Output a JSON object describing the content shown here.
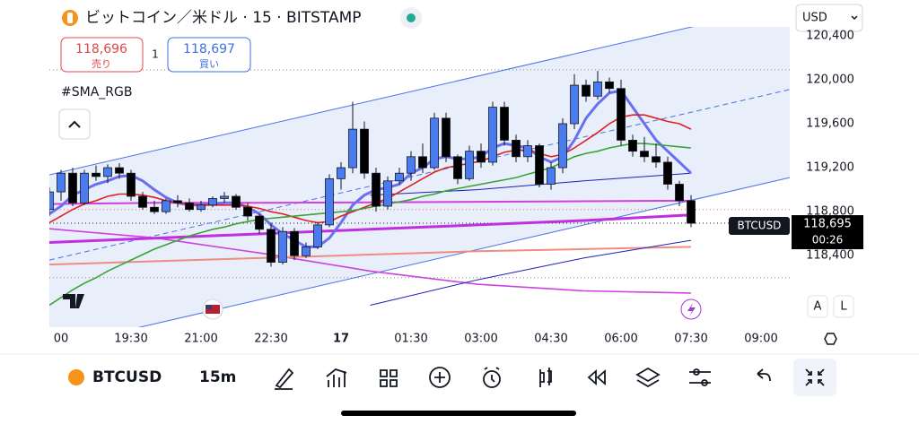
{
  "header": {
    "title": "ビットコイン／米ドル · 15 · BITSTAMP",
    "sell_price": "118,696",
    "sell_label": "売り",
    "quantity": "1",
    "buy_price": "118,697",
    "buy_label": "買い",
    "indicator": "#SMA_RGB",
    "currency": "USD"
  },
  "price_tag": {
    "symbol": "BTCUSD",
    "price": "118,695",
    "countdown": "00:26"
  },
  "side_buttons": [
    "A",
    "L"
  ],
  "toolbar": {
    "symbol": "BTCUSD",
    "interval": "15m"
  },
  "chart_data": {
    "type": "candlestick",
    "up_color": "#4a7cf0",
    "down_color": "#000000",
    "ylim": [
      117750,
      120480
    ],
    "yticks": [
      {
        "value": 118400,
        "label": "118,400"
      },
      {
        "value": 118800,
        "label": "118,800"
      },
      {
        "value": 119200,
        "label": "119,200"
      },
      {
        "value": 119600,
        "label": "119,600"
      },
      {
        "value": 120000,
        "label": "120,000"
      },
      {
        "value": 120400,
        "label": "120,400"
      }
    ],
    "xtick_labels": [
      "00",
      "19:30",
      "21:00",
      "22:30",
      "17",
      "01:30",
      "03:00",
      "04:30",
      "06:00",
      "07:30",
      "09:00"
    ],
    "open": [
      118820,
      118980,
      119150,
      118880,
      119150,
      119120,
      119200,
      119150,
      118940,
      118840,
      118800,
      118900,
      118880,
      118820,
      118860,
      118920,
      118940,
      118840,
      118760,
      118640,
      118340,
      118620,
      118400,
      118480,
      118680,
      119100,
      119200,
      119550,
      119150,
      118850,
      119080,
      119150,
      119300,
      119200,
      119650,
      119300,
      119100,
      119350,
      119250,
      119750,
      119450,
      119300,
      119400,
      119050,
      119200,
      119600,
      119950,
      119850,
      119980,
      119920,
      119450,
      119350,
      119300,
      119250,
      119050,
      118900
    ],
    "high": [
      119020,
      119180,
      119200,
      119180,
      119220,
      119230,
      119240,
      119180,
      118980,
      118900,
      118920,
      118950,
      118920,
      118900,
      118940,
      118980,
      118960,
      118880,
      118780,
      118700,
      118660,
      118650,
      118520,
      118700,
      119140,
      119250,
      119800,
      119620,
      119200,
      119120,
      119200,
      119350,
      119420,
      119700,
      119700,
      119320,
      119400,
      119420,
      119800,
      119800,
      119500,
      119450,
      119420,
      119250,
      119650,
      120050,
      120000,
      120080,
      120020,
      120000,
      119500,
      119480,
      119420,
      119300,
      119080,
      118950
    ],
    "low": [
      118760,
      118900,
      118850,
      118860,
      119080,
      119060,
      119100,
      118900,
      118820,
      118780,
      118780,
      118840,
      118800,
      118800,
      118840,
      118880,
      118820,
      118720,
      118600,
      118300,
      118320,
      118360,
      118380,
      118460,
      118660,
      119000,
      119150,
      119100,
      118800,
      118820,
      119050,
      119080,
      119150,
      119180,
      119250,
      119050,
      119080,
      119200,
      119220,
      119400,
      119250,
      119250,
      119020,
      119000,
      119150,
      119550,
      119800,
      119820,
      119880,
      119400,
      119300,
      119250,
      119200,
      119000,
      118850,
      118660
    ],
    "close": [
      118980,
      119150,
      118880,
      119150,
      119120,
      119200,
      119150,
      118940,
      118840,
      118800,
      118900,
      118880,
      118820,
      118860,
      118920,
      118940,
      118840,
      118760,
      118640,
      118340,
      118620,
      118400,
      118480,
      118680,
      119100,
      119200,
      119550,
      119150,
      118850,
      119080,
      119150,
      119300,
      119200,
      119650,
      119300,
      119100,
      119350,
      119250,
      119750,
      119450,
      119300,
      119400,
      119050,
      119200,
      119600,
      119950,
      119850,
      119980,
      119920,
      119450,
      119350,
      119300,
      119250,
      119050,
      118900,
      118695
    ],
    "series": [
      {
        "color": "#6a6ff0",
        "width": 3,
        "values": [
          118780,
          118850,
          118950,
          119000,
          119050,
          119080,
          119120,
          119130,
          119080,
          119000,
          118930,
          118880,
          118860,
          118860,
          118870,
          118880,
          118880,
          118840,
          118780,
          118680,
          118600,
          118540,
          118480,
          118480,
          118560,
          118700,
          118860,
          118950,
          119000,
          119020,
          119050,
          119150,
          119200,
          119280,
          119300,
          119280,
          119280,
          119300,
          119380,
          119420,
          119400,
          119380,
          119300,
          119250,
          119300,
          119450,
          119650,
          119780,
          119880,
          119900,
          119750,
          119600,
          119450,
          119350,
          119250,
          119150
        ]
      },
      {
        "color": "#e02020",
        "width": 1.6,
        "values": [
          118700,
          118760,
          118820,
          118870,
          118900,
          118940,
          118960,
          118960,
          118950,
          118930,
          118900,
          118880,
          118870,
          118860,
          118860,
          118860,
          118860,
          118850,
          118830,
          118800,
          118780,
          118750,
          118720,
          118700,
          118710,
          118760,
          118800,
          118840,
          118880,
          118920,
          118980,
          119040,
          119100,
          119160,
          119200,
          119220,
          119240,
          119260,
          119300,
          119340,
          119360,
          119360,
          119330,
          119300,
          119320,
          119380,
          119450,
          119520,
          119600,
          119660,
          119680,
          119680,
          119650,
          119620,
          119600,
          119550
        ]
      },
      {
        "color": "#3aa335",
        "width": 1.6,
        "values": [
          117950,
          118020,
          118090,
          118150,
          118200,
          118260,
          118310,
          118360,
          118410,
          118460,
          118500,
          118540,
          118580,
          118610,
          118640,
          118660,
          118690,
          118710,
          118730,
          118740,
          118750,
          118760,
          118770,
          118780,
          118790,
          118800,
          118810,
          118830,
          118850,
          118870,
          118890,
          118910,
          118940,
          118960,
          118990,
          119010,
          119030,
          119050,
          119070,
          119090,
          119110,
          119140,
          119170,
          119200,
          119250,
          119300,
          119330,
          119350,
          119380,
          119400,
          119420,
          119420,
          119410,
          119400,
          119390,
          119380
        ]
      }
    ],
    "overlays": [
      {
        "color": "#4a72e8",
        "width": 1,
        "extend": true,
        "values": [
          119135,
          120685
        ]
      },
      {
        "color": "#4a72e8",
        "width": 1,
        "extend": true,
        "values": [
          117560,
          119110
        ]
      },
      {
        "color": "#4a72e8",
        "width": 1,
        "extend": true,
        "dashed": true,
        "values": [
          118360,
          119910
        ]
      },
      {
        "color": "#d040e0",
        "width": 1.6,
        "values": [
          118645,
          118560,
          118420,
          118260,
          118140,
          118080,
          118060
        ]
      },
      {
        "color": "#d040e0",
        "width": 2,
        "values": [
          118870,
          118880,
          118880,
          118885,
          118890,
          118895,
          118900
        ]
      },
      {
        "color": "#c030e0",
        "width": 3,
        "values": [
          118520,
          118560,
          118600,
          118640,
          118680,
          118720,
          118770
        ]
      },
      {
        "color": "#ee8c80",
        "width": 2,
        "values": [
          118320,
          118350,
          118380,
          118410,
          118440,
          118460,
          118480
        ]
      },
      {
        "color": "#1d1fb8",
        "width": 1,
        "values": [
          null,
          null,
          null,
          117950,
          118180,
          118380,
          118540
        ]
      },
      {
        "color": "#1d1fb8",
        "width": 1,
        "values": [
          null,
          null,
          null,
          118950,
          119000,
          119080,
          119150
        ]
      }
    ],
    "hlines": [
      {
        "value": 120090,
        "color": "#8a8a8a"
      },
      {
        "value": 118820,
        "color": "#e07070"
      },
      {
        "value": 118200,
        "color": "#8a8a8a"
      }
    ]
  }
}
